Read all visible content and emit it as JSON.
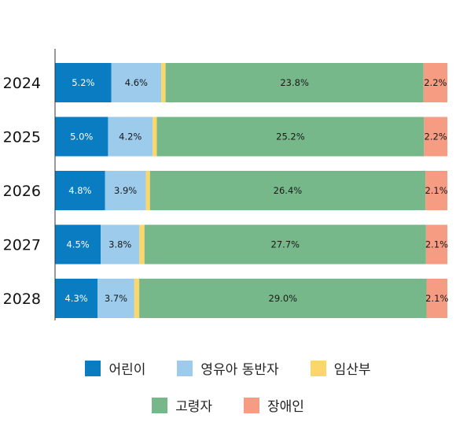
{
  "chart_data": {
    "type": "bar",
    "orientation": "horizontal",
    "stacked": true,
    "categories": [
      "2024",
      "2025",
      "2026",
      "2027",
      "2028"
    ],
    "series": [
      {
        "name": "어린이",
        "color": "#0a7cc1",
        "values": [
          5.2,
          5.0,
          4.8,
          4.5,
          4.3
        ],
        "labels": [
          "5.2%",
          "5.0%",
          "4.8%",
          "4.5%",
          "4.3%"
        ]
      },
      {
        "name": "영유아 동반자",
        "color": "#9ccbec",
        "values": [
          4.6,
          4.2,
          3.9,
          3.8,
          3.7
        ],
        "labels": [
          "4.6%",
          "4.2%",
          "3.9%",
          "3.8%",
          "3.7%"
        ]
      },
      {
        "name": "임산부",
        "color": "#fbd66a",
        "values": [
          0.4,
          0.4,
          0.4,
          0.5,
          0.5
        ],
        "labels": [
          "0.4%",
          "0.4%",
          "0.4%",
          "0.5%",
          "0.5%"
        ]
      },
      {
        "name": "고령자",
        "color": "#76b889",
        "values": [
          23.8,
          25.2,
          26.4,
          27.7,
          29.0
        ],
        "labels": [
          "23.8%",
          "25.2%",
          "26.4%",
          "27.7%",
          "29.0%"
        ]
      },
      {
        "name": "장애인",
        "color": "#f59c83",
        "values": [
          2.2,
          2.2,
          2.1,
          2.1,
          2.1
        ],
        "labels": [
          "2.2%",
          "2.2%",
          "2.1%",
          "2.1%",
          "2.1%"
        ]
      }
    ],
    "legend_position": "bottom",
    "grid": false
  }
}
